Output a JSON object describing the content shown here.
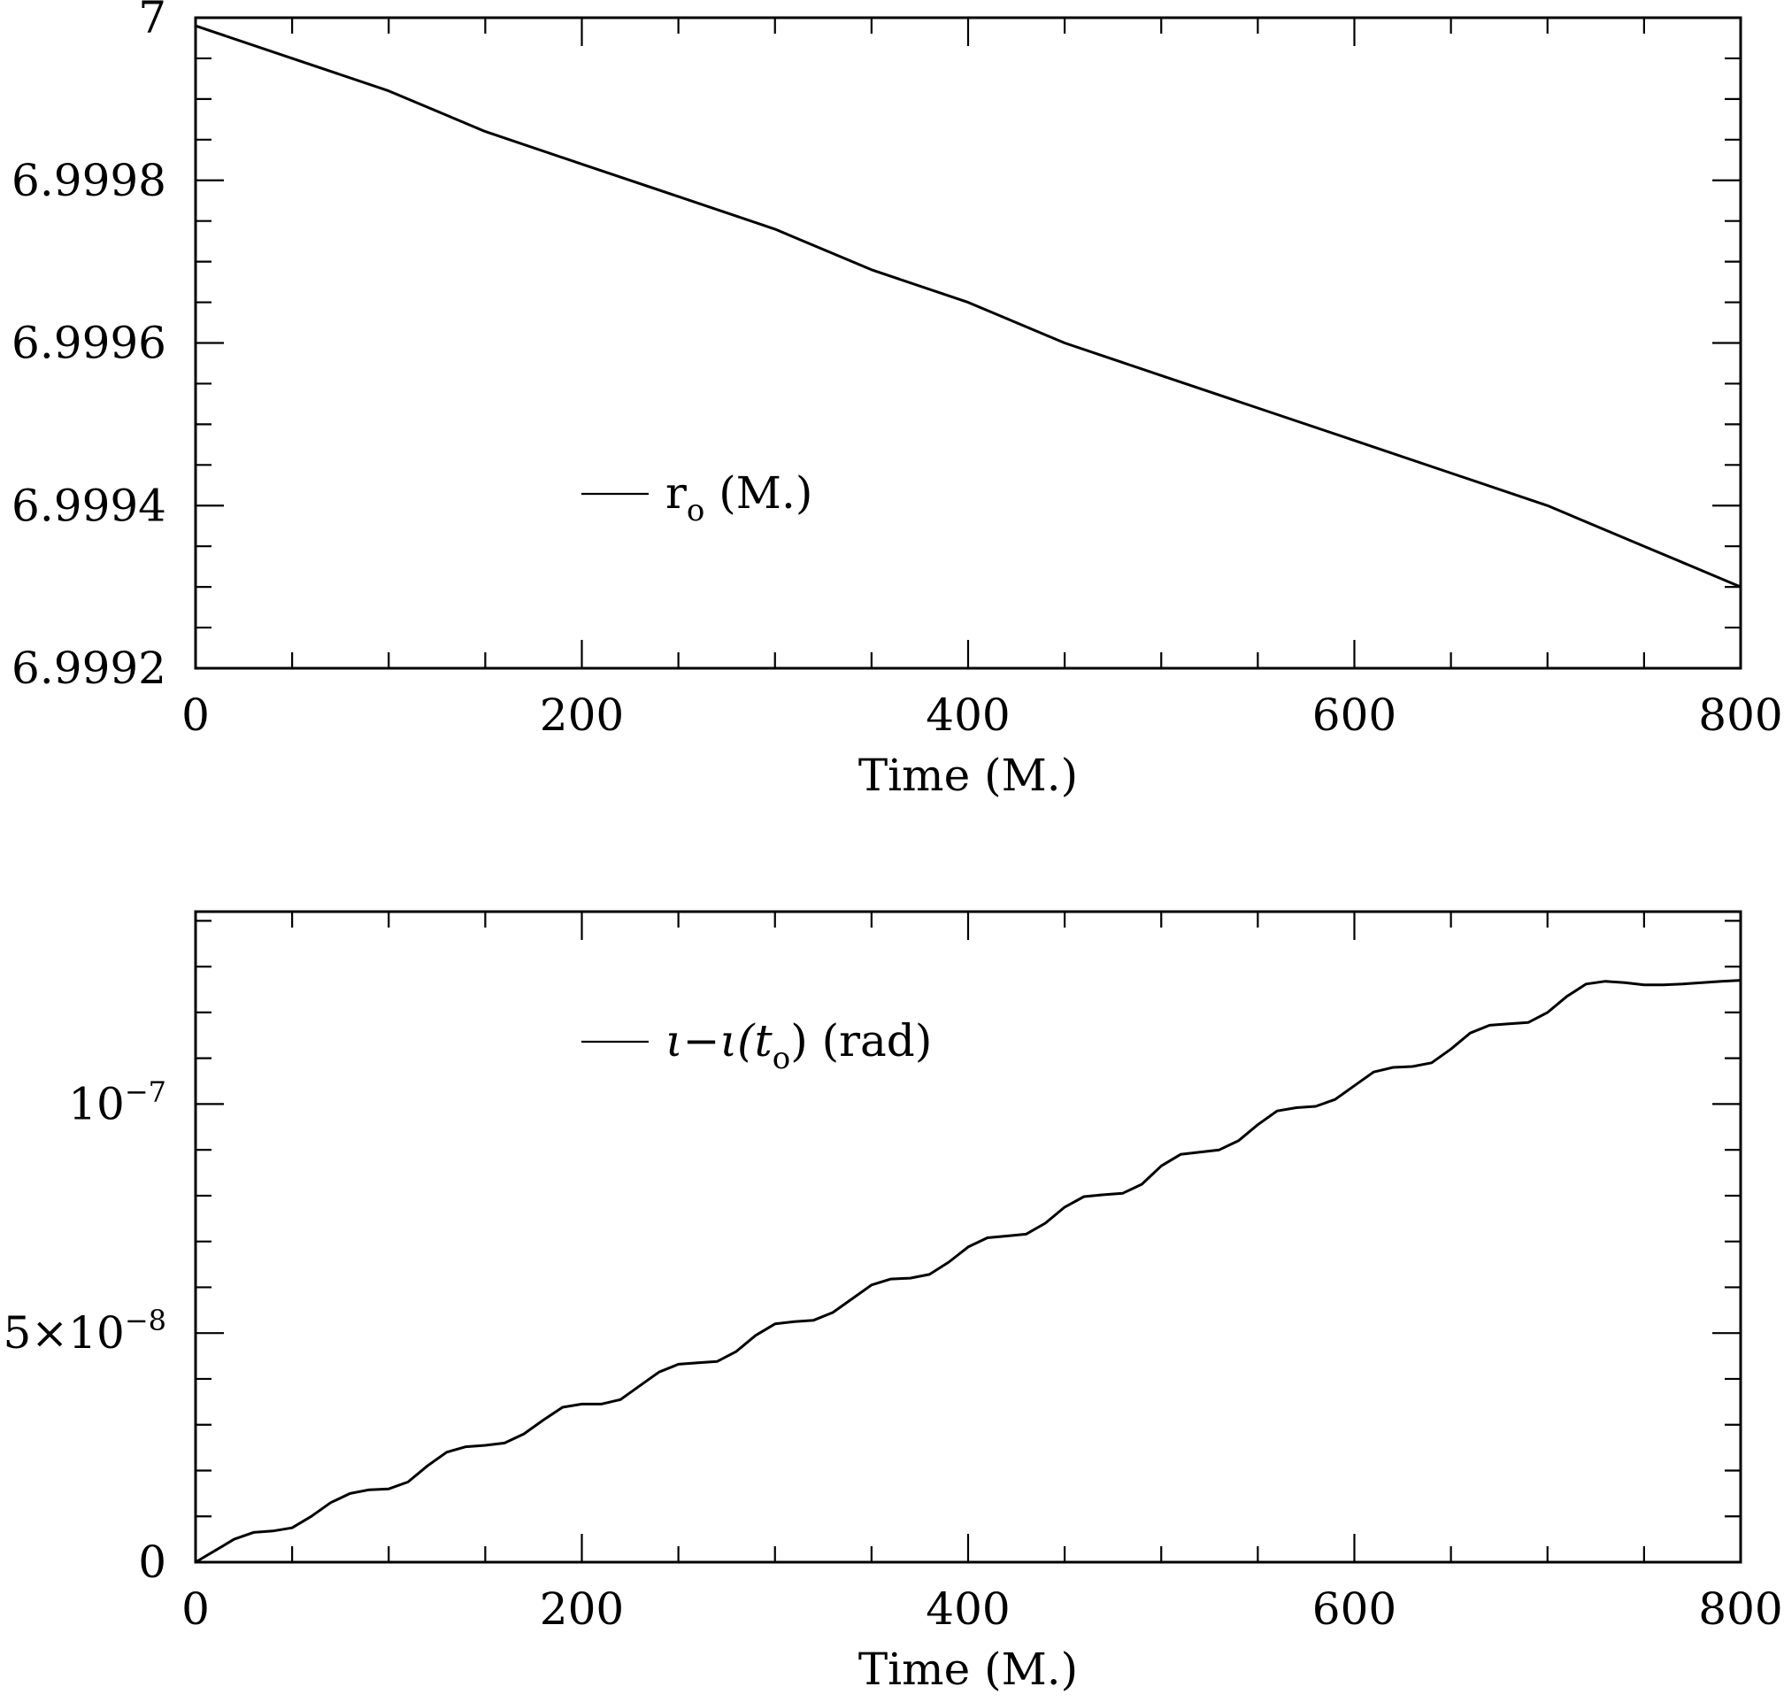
{
  "chart_data": [
    {
      "type": "line",
      "xlabel": "Time (M.)",
      "xlim": [
        0,
        800
      ],
      "ylim": [
        6.9992,
        7.0
      ],
      "x_ticks": [
        {
          "value": 0,
          "label": "0"
        },
        {
          "value": 200,
          "label": "200"
        },
        {
          "value": 400,
          "label": "400"
        },
        {
          "value": 600,
          "label": "600"
        },
        {
          "value": 800,
          "label": "800"
        }
      ],
      "y_ticks": [
        {
          "value": 7.0,
          "label": "7"
        },
        {
          "value": 6.9998,
          "label": "6.9998"
        },
        {
          "value": 6.9996,
          "label": "6.9996"
        },
        {
          "value": 6.9994,
          "label": "6.9994"
        },
        {
          "value": 6.9992,
          "label": "6.9992"
        }
      ],
      "x_minor_step": 50,
      "y_minor_step": 5e-05,
      "legend": {
        "placement": "left-middle",
        "label_main": "r",
        "label_sub": "o",
        "label_tail": " (M.)"
      },
      "series": [
        {
          "x": [
            0,
            50,
            100,
            150,
            200,
            250,
            300,
            350,
            400,
            450,
            500,
            550,
            600,
            650,
            700,
            750,
            800
          ],
          "y": [
            6.99999,
            6.99995,
            6.99991,
            6.99986,
            6.99982,
            6.99978,
            6.99974,
            6.99969,
            6.99965,
            6.9996,
            6.99956,
            6.99952,
            6.99948,
            6.99944,
            6.9994,
            6.99935,
            6.9993
          ]
        }
      ]
    },
    {
      "type": "line",
      "xlabel": "Time (M.)",
      "xlim": [
        0,
        800
      ],
      "ylim": [
        0,
        1.42e-07
      ],
      "x_ticks": [
        {
          "value": 0,
          "label": "0"
        },
        {
          "value": 200,
          "label": "200"
        },
        {
          "value": 400,
          "label": "400"
        },
        {
          "value": 600,
          "label": "600"
        },
        {
          "value": 800,
          "label": "800"
        }
      ],
      "y_ticks": [
        {
          "value": 1e-07,
          "label_base": "10",
          "label_exp": "−7"
        },
        {
          "value": 5e-08,
          "label_base": "5×10",
          "label_exp": "−8"
        },
        {
          "value": 0,
          "label_base": "0",
          "label_exp": ""
        }
      ],
      "x_minor_step": 50,
      "y_minor_step": 1e-08,
      "legend": {
        "placement": "top-left",
        "label_symbol": "ι−ι(t",
        "label_sub": "o",
        "label_tail": ")  (rad)"
      },
      "series": [
        {
          "x": [
            0,
            10,
            20,
            30,
            40,
            50,
            60,
            70,
            80,
            90,
            100,
            110,
            120,
            130,
            140,
            150,
            160,
            170,
            180,
            190,
            200,
            210,
            220,
            230,
            240,
            250,
            260,
            270,
            280,
            290,
            300,
            310,
            320,
            330,
            340,
            350,
            360,
            370,
            380,
            390,
            400,
            410,
            420,
            430,
            440,
            450,
            460,
            470,
            480,
            490,
            500,
            510,
            520,
            530,
            540,
            550,
            560,
            570,
            580,
            590,
            600,
            610,
            620,
            630,
            640,
            650,
            660,
            670,
            680,
            690,
            700,
            710,
            720,
            730,
            740,
            750,
            760,
            770,
            780,
            790,
            800
          ],
          "y": [
            0,
            2.5e-09,
            5e-09,
            6.5e-09,
            6.8e-09,
            7.5e-09,
            1e-08,
            1.3e-08,
            1.5e-08,
            1.58e-08,
            1.6e-08,
            1.75e-08,
            2.1e-08,
            2.4e-08,
            2.52e-08,
            2.55e-08,
            2.6e-08,
            2.8e-08,
            3.1e-08,
            3.38e-08,
            3.45e-08,
            3.45e-08,
            3.55e-08,
            3.85e-08,
            4.15e-08,
            4.32e-08,
            4.35e-08,
            4.38e-08,
            4.6e-08,
            4.95e-08,
            5.2e-08,
            5.25e-08,
            5.28e-08,
            5.45e-08,
            5.75e-08,
            6.05e-08,
            6.18e-08,
            6.2e-08,
            6.28e-08,
            6.55e-08,
            6.88e-08,
            7.08e-08,
            7.12e-08,
            7.16e-08,
            7.4e-08,
            7.75e-08,
            7.98e-08,
            8.02e-08,
            8.05e-08,
            8.25e-08,
            8.65e-08,
            8.9e-08,
            8.95e-08,
            9e-08,
            9.2e-08,
            9.55e-08,
            9.85e-08,
            9.92e-08,
            9.95e-08,
            1.01e-07,
            1.04e-07,
            1.07e-07,
            1.08e-07,
            1.082e-07,
            1.09e-07,
            1.12e-07,
            1.155e-07,
            1.172e-07,
            1.175e-07,
            1.178e-07,
            1.2e-07,
            1.235e-07,
            1.262e-07,
            1.268e-07,
            1.265e-07,
            1.26e-07,
            1.26e-07,
            1.262e-07,
            1.265e-07,
            1.268e-07,
            1.27e-07
          ]
        }
      ]
    }
  ]
}
